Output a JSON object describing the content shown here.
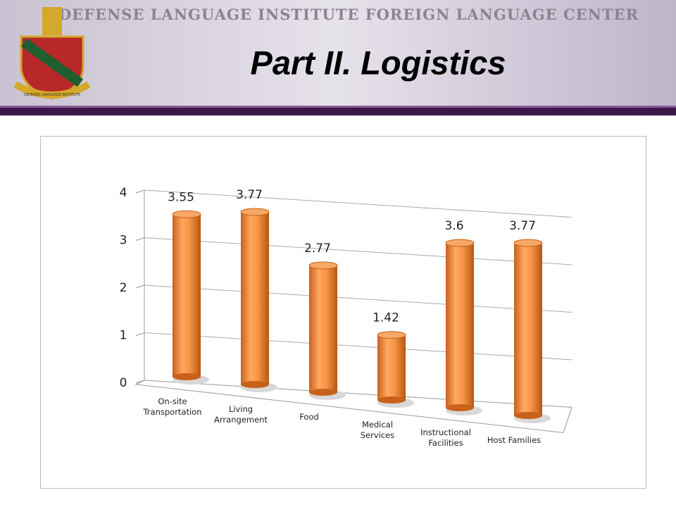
{
  "header": {
    "institute": "DEFENSE LANGUAGE INSTITUTE FOREIGN LANGUAGE CENTER",
    "logo_text": "DEFENSE LANGUAGE INSTITUTE",
    "title": "Part II. Logistics"
  },
  "chart_data": {
    "type": "cylinder",
    "categories": [
      "On-site Transportation",
      "Living Arrangement",
      "Food",
      "Medical Services",
      "Instructional Facilities",
      "Host Families"
    ],
    "values": [
      3.55,
      3.77,
      2.77,
      1.42,
      3.6,
      3.77
    ],
    "color": "#f79646",
    "ylim": [
      0,
      4
    ],
    "yticks": [
      0,
      1,
      2,
      3,
      4
    ],
    "grid": true
  }
}
